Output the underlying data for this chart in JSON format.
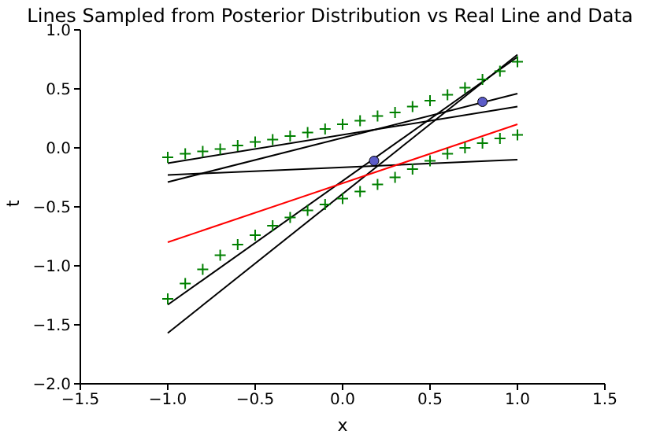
{
  "chart_data": {
    "type": "line",
    "title": "Lines Sampled from Posterior Distribution vs Real Line and Data",
    "xlabel": "x",
    "ylabel": "t",
    "xlim": [
      -1.5,
      1.5
    ],
    "xticks": [
      {
        "value": -1.5,
        "label": "−1.5"
      },
      {
        "value": -1.0,
        "label": "−1.0"
      },
      {
        "value": -0.5,
        "label": "−0.5"
      },
      {
        "value": 0.0,
        "label": "0.0"
      },
      {
        "value": 0.5,
        "label": "0.5"
      },
      {
        "value": 1.0,
        "label": "1.0"
      },
      {
        "value": 1.5,
        "label": "1.5"
      }
    ],
    "ylim": [
      -2.0,
      1.0
    ],
    "yticks": [
      {
        "value": -2.0,
        "label": "−2.0"
      },
      {
        "value": -1.5,
        "label": "−1.5"
      },
      {
        "value": -1.0,
        "label": "−1.0"
      },
      {
        "value": -0.5,
        "label": "−0.5"
      },
      {
        "value": 0.0,
        "label": "0.0"
      },
      {
        "value": 0.5,
        "label": "0.5"
      },
      {
        "value": 1.0,
        "label": "1.0"
      }
    ],
    "series": [
      {
        "type": "scatter",
        "marker": "cross",
        "color": "#008000",
        "x": [
          -1,
          -0.9,
          -0.8,
          -0.7,
          -0.6,
          -0.5,
          -0.4,
          -0.3,
          -0.2,
          -0.1,
          0,
          0.1,
          0.2,
          0.3,
          0.4,
          0.5,
          0.6,
          0.7,
          0.8,
          0.9,
          1
        ],
        "values": [
          -0.08,
          -0.05,
          -0.03,
          -0.01,
          0.02,
          0.05,
          0.07,
          0.1,
          0.13,
          0.16,
          0.2,
          0.23,
          0.27,
          0.3,
          0.35,
          0.4,
          0.45,
          0.51,
          0.58,
          0.65,
          0.73
        ]
      },
      {
        "type": "scatter",
        "marker": "cross",
        "color": "#008000",
        "x": [
          -1,
          -0.9,
          -0.8,
          -0.7,
          -0.6,
          -0.5,
          -0.4,
          -0.3,
          -0.2,
          -0.1,
          0,
          0.1,
          0.2,
          0.3,
          0.4,
          0.5,
          0.6,
          0.7,
          0.8,
          0.9,
          1
        ],
        "values": [
          -1.28,
          -1.15,
          -1.03,
          -0.91,
          -0.82,
          -0.74,
          -0.66,
          -0.59,
          -0.53,
          -0.48,
          -0.43,
          -0.37,
          -0.31,
          -0.25,
          -0.18,
          -0.11,
          -0.05,
          0.0,
          0.04,
          0.08,
          0.11
        ]
      },
      {
        "color": "#000000",
        "x": [
          -1,
          1
        ],
        "values": [
          -0.13,
          0.35
        ]
      },
      {
        "color": "#000000",
        "x": [
          -1,
          1
        ],
        "values": [
          -0.29,
          0.46
        ]
      },
      {
        "color": "#000000",
        "x": [
          -1,
          1
        ],
        "values": [
          -0.23,
          -0.1
        ]
      },
      {
        "color": "#000000",
        "x": [
          -1,
          1
        ],
        "values": [
          -1.33,
          0.77
        ]
      },
      {
        "color": "#000000",
        "x": [
          -1,
          1
        ],
        "values": [
          -1.57,
          0.79
        ]
      },
      {
        "color": "#ff0000",
        "x": [
          -1,
          1
        ],
        "values": [
          -0.8,
          0.2
        ]
      },
      {
        "type": "scatter",
        "marker": "circle",
        "color": "#5c5cc8",
        "x": [
          0.18,
          0.8
        ],
        "values": [
          -0.11,
          0.39
        ]
      }
    ]
  }
}
